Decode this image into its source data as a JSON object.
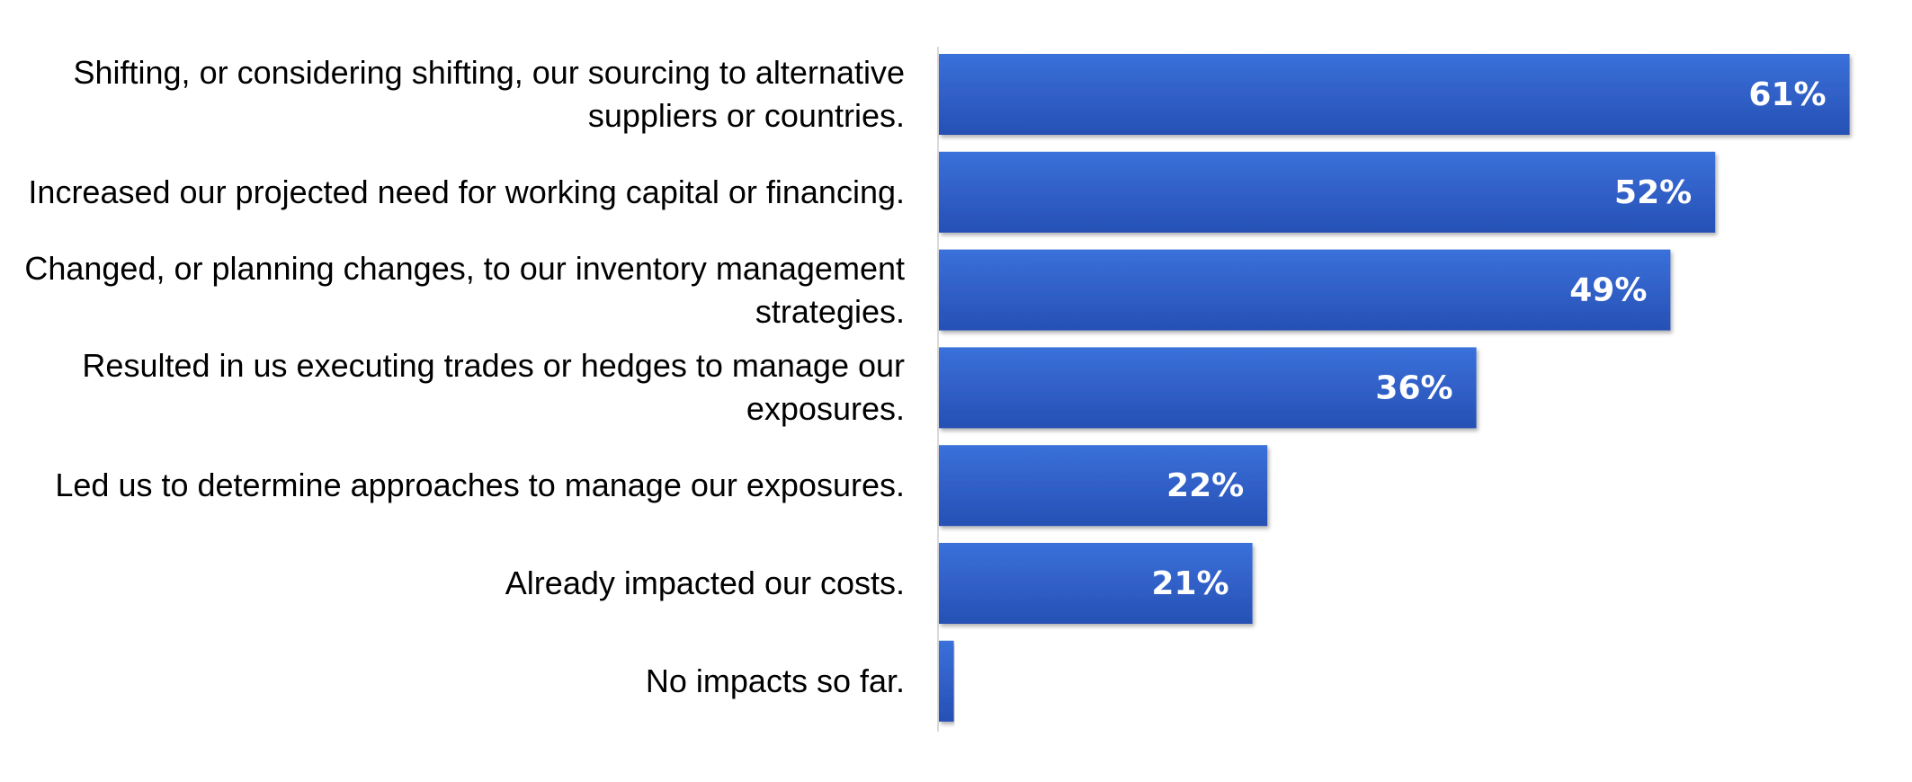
{
  "chart_data": {
    "type": "bar",
    "orientation": "horizontal",
    "categories": [
      "Shifting, or considering shifting, our sourcing to alternative suppliers or countries.",
      "Increased our projected need for working capital or financing.",
      "Changed, or planning changes, to our inventory management strategies.",
      "Resulted in us executing trades or hedges to manage our exposures.",
      "Led us to determine approaches to manage our exposures.",
      "Already impacted our costs.",
      "No impacts so far."
    ],
    "values": [
      61,
      52,
      49,
      36,
      22,
      21,
      1
    ],
    "value_labels": [
      "61%",
      "52%",
      "49%",
      "36%",
      "22%",
      "21%",
      null
    ],
    "color": "#2f62cc"
  }
}
